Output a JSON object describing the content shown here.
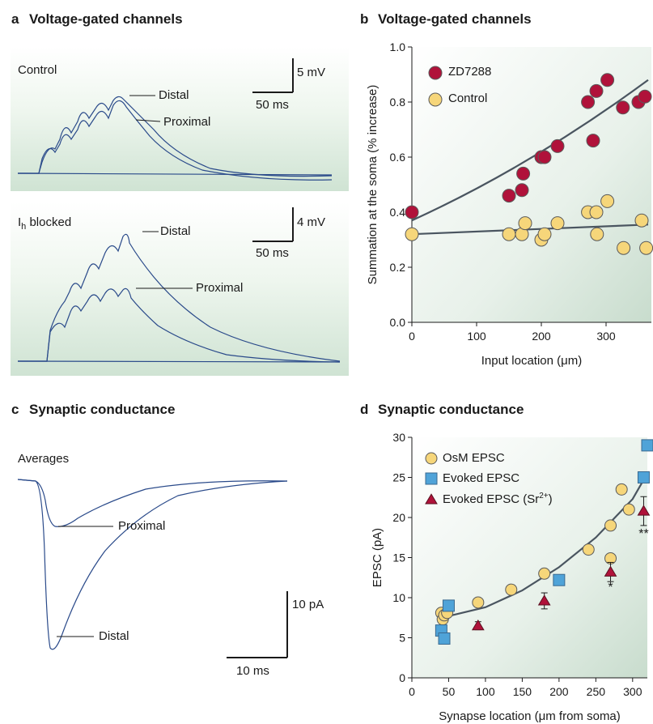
{
  "panel_a": {
    "letter": "a",
    "title": "Voltage-gated channels",
    "top": {
      "condition": "Control",
      "scale_y": "5 mV",
      "scale_x": "50 ms",
      "trace_labels": [
        "Distal",
        "Proximal"
      ]
    },
    "bottom": {
      "condition_main": "I",
      "condition_sub": "h",
      "condition_rest": " blocked",
      "scale_y": "4 mV",
      "scale_x": "50 ms",
      "trace_labels": [
        "Distal",
        "Proximal"
      ]
    }
  },
  "panel_c": {
    "letter": "c",
    "title": "Synaptic conductance",
    "condition": "Averages",
    "scale_y": "10 pA",
    "scale_x": "10 ms",
    "trace_labels": [
      "Proximal",
      "Distal"
    ]
  },
  "colors": {
    "trace": "#2a4a8a",
    "zd7288": "#b0123a",
    "control": "#f6d67a",
    "evoked": "#4fa3d8",
    "fit": "#4a5560"
  },
  "chart_data": [
    {
      "id": "b",
      "type": "scatter",
      "letter": "b",
      "title": "Voltage-gated channels",
      "xlabel": "Input location (μm)",
      "ylabel": "Summation at the soma (% increase)",
      "xlim": [
        0,
        370
      ],
      "ylim": [
        0,
        1.0
      ],
      "xticks": [
        "0",
        "100",
        "200",
        "300"
      ],
      "yticks": [
        "0.0",
        "0.2",
        "0.4",
        "0.6",
        "0.8",
        "1.0"
      ],
      "legend_position": "top-left",
      "series": [
        {
          "name": "ZD7288",
          "marker": "circle",
          "points": [
            [
              0,
              0.4
            ],
            [
              150,
              0.46
            ],
            [
              170,
              0.48
            ],
            [
              172,
              0.54
            ],
            [
              200,
              0.6
            ],
            [
              205,
              0.6
            ],
            [
              225,
              0.64
            ],
            [
              272,
              0.8
            ],
            [
              280,
              0.66
            ],
            [
              285,
              0.84
            ],
            [
              302,
              0.88
            ],
            [
              326,
              0.78
            ],
            [
              350,
              0.8
            ],
            [
              360,
              0.82
            ]
          ]
        },
        {
          "name": "Control",
          "marker": "circle",
          "points": [
            [
              0,
              0.32
            ],
            [
              150,
              0.32
            ],
            [
              170,
              0.32
            ],
            [
              175,
              0.36
            ],
            [
              200,
              0.3
            ],
            [
              205,
              0.32
            ],
            [
              225,
              0.36
            ],
            [
              272,
              0.4
            ],
            [
              285,
              0.4
            ],
            [
              286,
              0.32
            ],
            [
              302,
              0.44
            ],
            [
              327,
              0.27
            ],
            [
              355,
              0.37
            ],
            [
              362,
              0.27
            ]
          ]
        }
      ],
      "fits": [
        {
          "series": "ZD7288",
          "from": [
            0,
            0.37
          ],
          "to": [
            365,
            0.88
          ]
        },
        {
          "series": "Control",
          "from": [
            0,
            0.32
          ],
          "to": [
            365,
            0.355
          ]
        }
      ]
    },
    {
      "id": "d",
      "type": "scatter",
      "letter": "d",
      "title": "Synaptic conductance",
      "xlabel": "Synapse location (μm from soma)",
      "ylabel": "EPSC (pA)",
      "xlim": [
        0,
        320
      ],
      "ylim": [
        0,
        30
      ],
      "xticks": [
        "0",
        "50",
        "100",
        "150",
        "200",
        "250",
        "300"
      ],
      "yticks": [
        "0",
        "5",
        "10",
        "15",
        "20",
        "25",
        "30"
      ],
      "legend_position": "top-left",
      "series": [
        {
          "name": "OsM EPSC",
          "marker": "circle",
          "points": [
            [
              40,
              8.1
            ],
            [
              42,
              7.3
            ],
            [
              44,
              7.8
            ],
            [
              48,
              8.1
            ],
            [
              90,
              9.4
            ],
            [
              135,
              11.0
            ],
            [
              180,
              13.0
            ],
            [
              240,
              16.0
            ],
            [
              270,
              19.0
            ],
            [
              270,
              14.9
            ],
            [
              285,
              23.5
            ],
            [
              295,
              21.0
            ]
          ]
        },
        {
          "name": "Evoked EPSC",
          "marker": "square",
          "points": [
            [
              40,
              5.9
            ],
            [
              44,
              4.9
            ],
            [
              50,
              9.0
            ],
            [
              200,
              12.2
            ],
            [
              315,
              25.0
            ],
            [
              320,
              29.0
            ]
          ]
        },
        {
          "name": "Evoked EPSC (Sr2+)",
          "name_main": "Evoked EPSC (Sr",
          "name_sup": "2+",
          "name_end": ")",
          "marker": "triangle",
          "points": [
            [
              90,
              6.5,
              0.5
            ],
            [
              180,
              9.6,
              1.0
            ],
            [
              270,
              13.2,
              1.2
            ],
            [
              315,
              20.8,
              1.8
            ]
          ]
        }
      ],
      "annotations": [
        {
          "text": "*",
          "x": 270,
          "y": 10.8
        },
        {
          "text": "**",
          "x": 315,
          "y": 17.5
        }
      ],
      "fits": [
        {
          "series": "all",
          "points": [
            [
              45,
              7.6
            ],
            [
              100,
              8.8
            ],
            [
              150,
              10.9
            ],
            [
              200,
              13.8
            ],
            [
              250,
              17.5
            ],
            [
              300,
              22.3
            ],
            [
              320,
              25.5
            ]
          ]
        }
      ]
    }
  ]
}
